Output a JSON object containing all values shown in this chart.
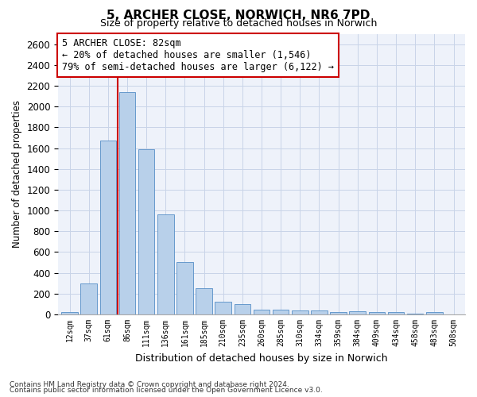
{
  "title": "5, ARCHER CLOSE, NORWICH, NR6 7PD",
  "subtitle": "Size of property relative to detached houses in Norwich",
  "xlabel": "Distribution of detached houses by size in Norwich",
  "ylabel": "Number of detached properties",
  "bar_color": "#b8d0ea",
  "bar_edge_color": "#6699cc",
  "categories": [
    "12sqm",
    "37sqm",
    "61sqm",
    "86sqm",
    "111sqm",
    "136sqm",
    "161sqm",
    "185sqm",
    "210sqm",
    "235sqm",
    "260sqm",
    "285sqm",
    "310sqm",
    "334sqm",
    "359sqm",
    "384sqm",
    "409sqm",
    "434sqm",
    "458sqm",
    "483sqm",
    "508sqm"
  ],
  "values": [
    25,
    300,
    1670,
    2140,
    1590,
    960,
    505,
    250,
    120,
    100,
    50,
    50,
    35,
    40,
    20,
    30,
    25,
    20,
    10,
    25,
    0
  ],
  "ylim": [
    0,
    2700
  ],
  "yticks": [
    0,
    200,
    400,
    600,
    800,
    1000,
    1200,
    1400,
    1600,
    1800,
    2000,
    2200,
    2400,
    2600
  ],
  "vline_x": 2.5,
  "vline_color": "#cc0000",
  "annotation_text": "5 ARCHER CLOSE: 82sqm\n← 20% of detached houses are smaller (1,546)\n79% of semi-detached houses are larger (6,122) →",
  "annotation_box_facecolor": "#ffffff",
  "annotation_box_edgecolor": "#cc0000",
  "footnote1": "Contains HM Land Registry data © Crown copyright and database right 2024.",
  "footnote2": "Contains public sector information licensed under the Open Government Licence v3.0.",
  "grid_color": "#c8d4e8",
  "background_color": "#eef2fa"
}
